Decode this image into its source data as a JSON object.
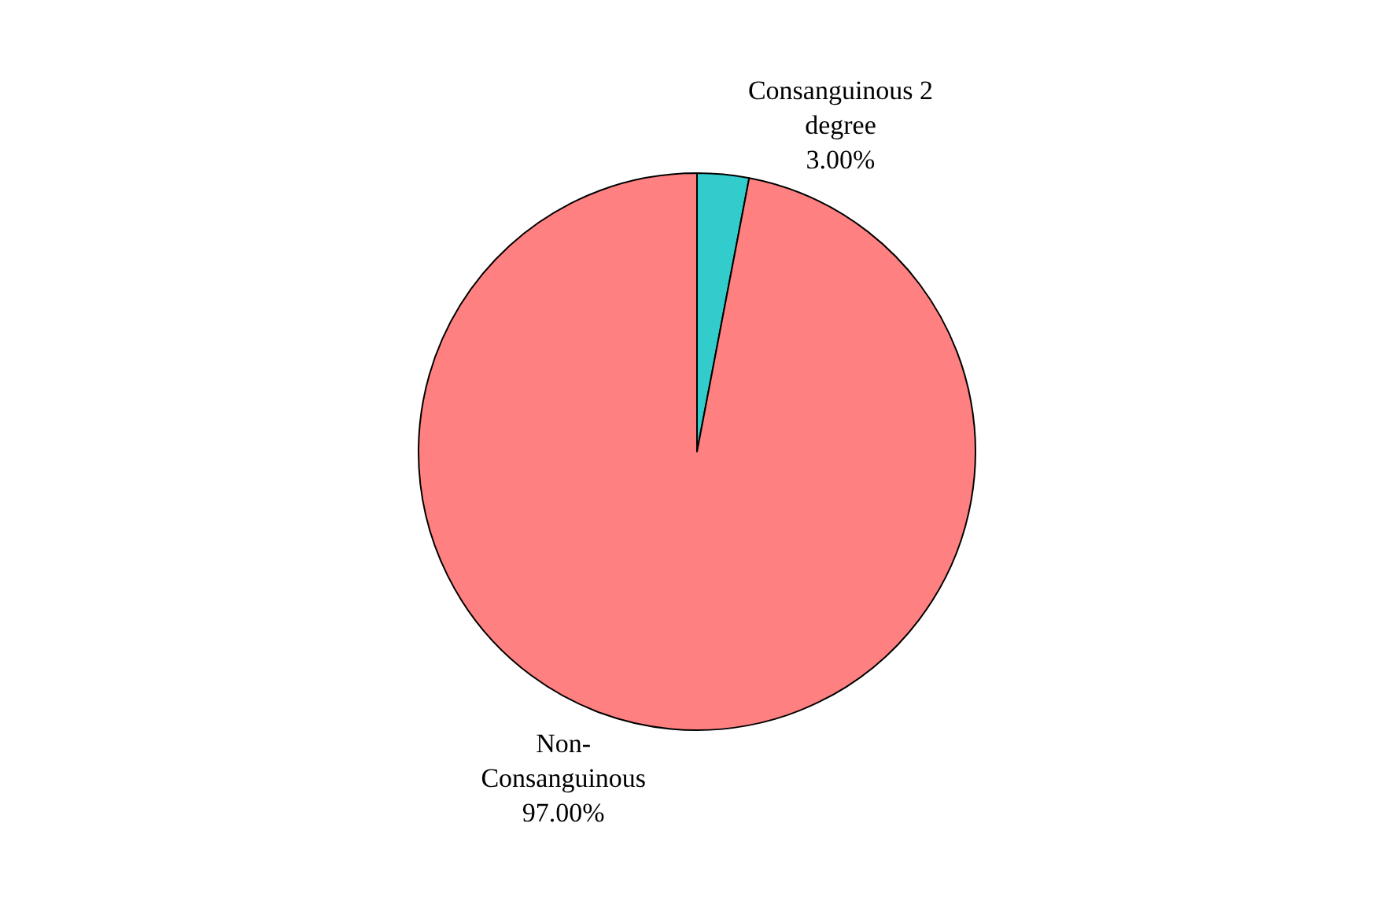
{
  "chart_data": {
    "type": "pie",
    "categories": [
      "Consanguinous 2 degree",
      "Non-Consanguinous"
    ],
    "values": [
      3,
      97
    ],
    "colors": [
      "#33cccc",
      "#ff8080"
    ],
    "value_labels": [
      "3.00%",
      "97.00%"
    ]
  }
}
